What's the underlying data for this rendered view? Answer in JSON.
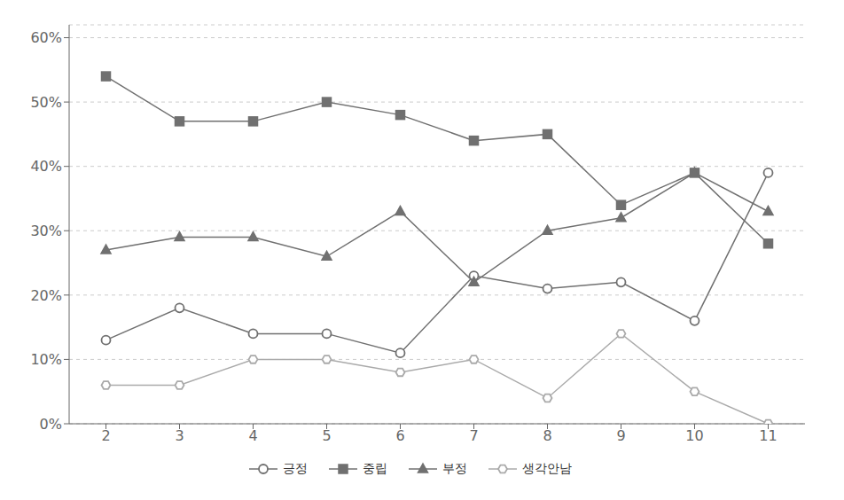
{
  "chart_data": {
    "type": "line",
    "x": [
      2,
      3,
      4,
      5,
      6,
      7,
      8,
      9,
      10,
      11
    ],
    "series": [
      {
        "name": "긍정",
        "color": "#707070",
        "marker": "open-circle",
        "values": [
          0.13,
          0.18,
          0.14,
          0.14,
          0.11,
          0.23,
          0.21,
          0.22,
          0.16,
          0.39
        ]
      },
      {
        "name": "중립",
        "color": "#707070",
        "marker": "square",
        "values": [
          0.54,
          0.47,
          0.47,
          0.5,
          0.48,
          0.44,
          0.45,
          0.34,
          0.39,
          0.28
        ]
      },
      {
        "name": "부정",
        "color": "#707070",
        "marker": "triangle",
        "values": [
          0.27,
          0.29,
          0.29,
          0.26,
          0.33,
          0.22,
          0.3,
          0.32,
          0.39,
          0.33
        ]
      },
      {
        "name": "생각안남",
        "color": "#aaaaaa",
        "marker": "open-hexagon",
        "values": [
          0.06,
          0.06,
          0.1,
          0.1,
          0.08,
          0.1,
          0.04,
          0.14,
          0.05,
          0.0
        ]
      }
    ],
    "xlim": [
      1.5,
      11.5
    ],
    "xticks": [
      2,
      3,
      4,
      5,
      6,
      7,
      8,
      9,
      10,
      11
    ],
    "ylim": [
      0,
      0.62
    ],
    "yticks": [
      {
        "value": 0.0,
        "label": "0%"
      },
      {
        "value": 0.1,
        "label": "10%"
      },
      {
        "value": 0.2,
        "label": "20%"
      },
      {
        "value": 0.3,
        "label": "30%"
      },
      {
        "value": 0.4,
        "label": "40%"
      },
      {
        "value": 0.5,
        "label": "50%"
      },
      {
        "value": 0.6,
        "label": "60%"
      }
    ],
    "grid": true,
    "legend": "bottom"
  }
}
